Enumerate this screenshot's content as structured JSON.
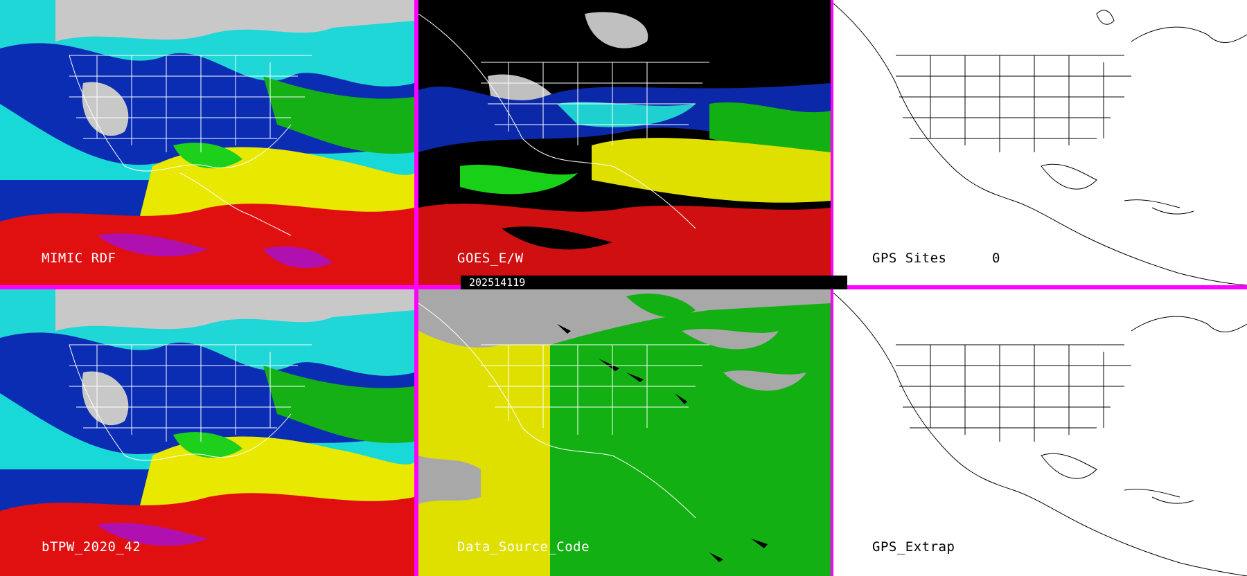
{
  "panels": {
    "mimic": {
      "label": "MIMIC RDF"
    },
    "goes": {
      "label": "GOES_E/W"
    },
    "gps_sites": {
      "label": "GPS Sites",
      "count": "0"
    },
    "btpw": {
      "label": "bTPW_2020_42"
    },
    "data_source": {
      "label": "Data_Source_Code"
    },
    "gps_extrap": {
      "label": "GPS_Extrap"
    }
  },
  "timestamp": "202514119",
  "colors": {
    "frame": "#ff00ff",
    "label_light": "#ffffff",
    "label_dark": "#000000"
  }
}
